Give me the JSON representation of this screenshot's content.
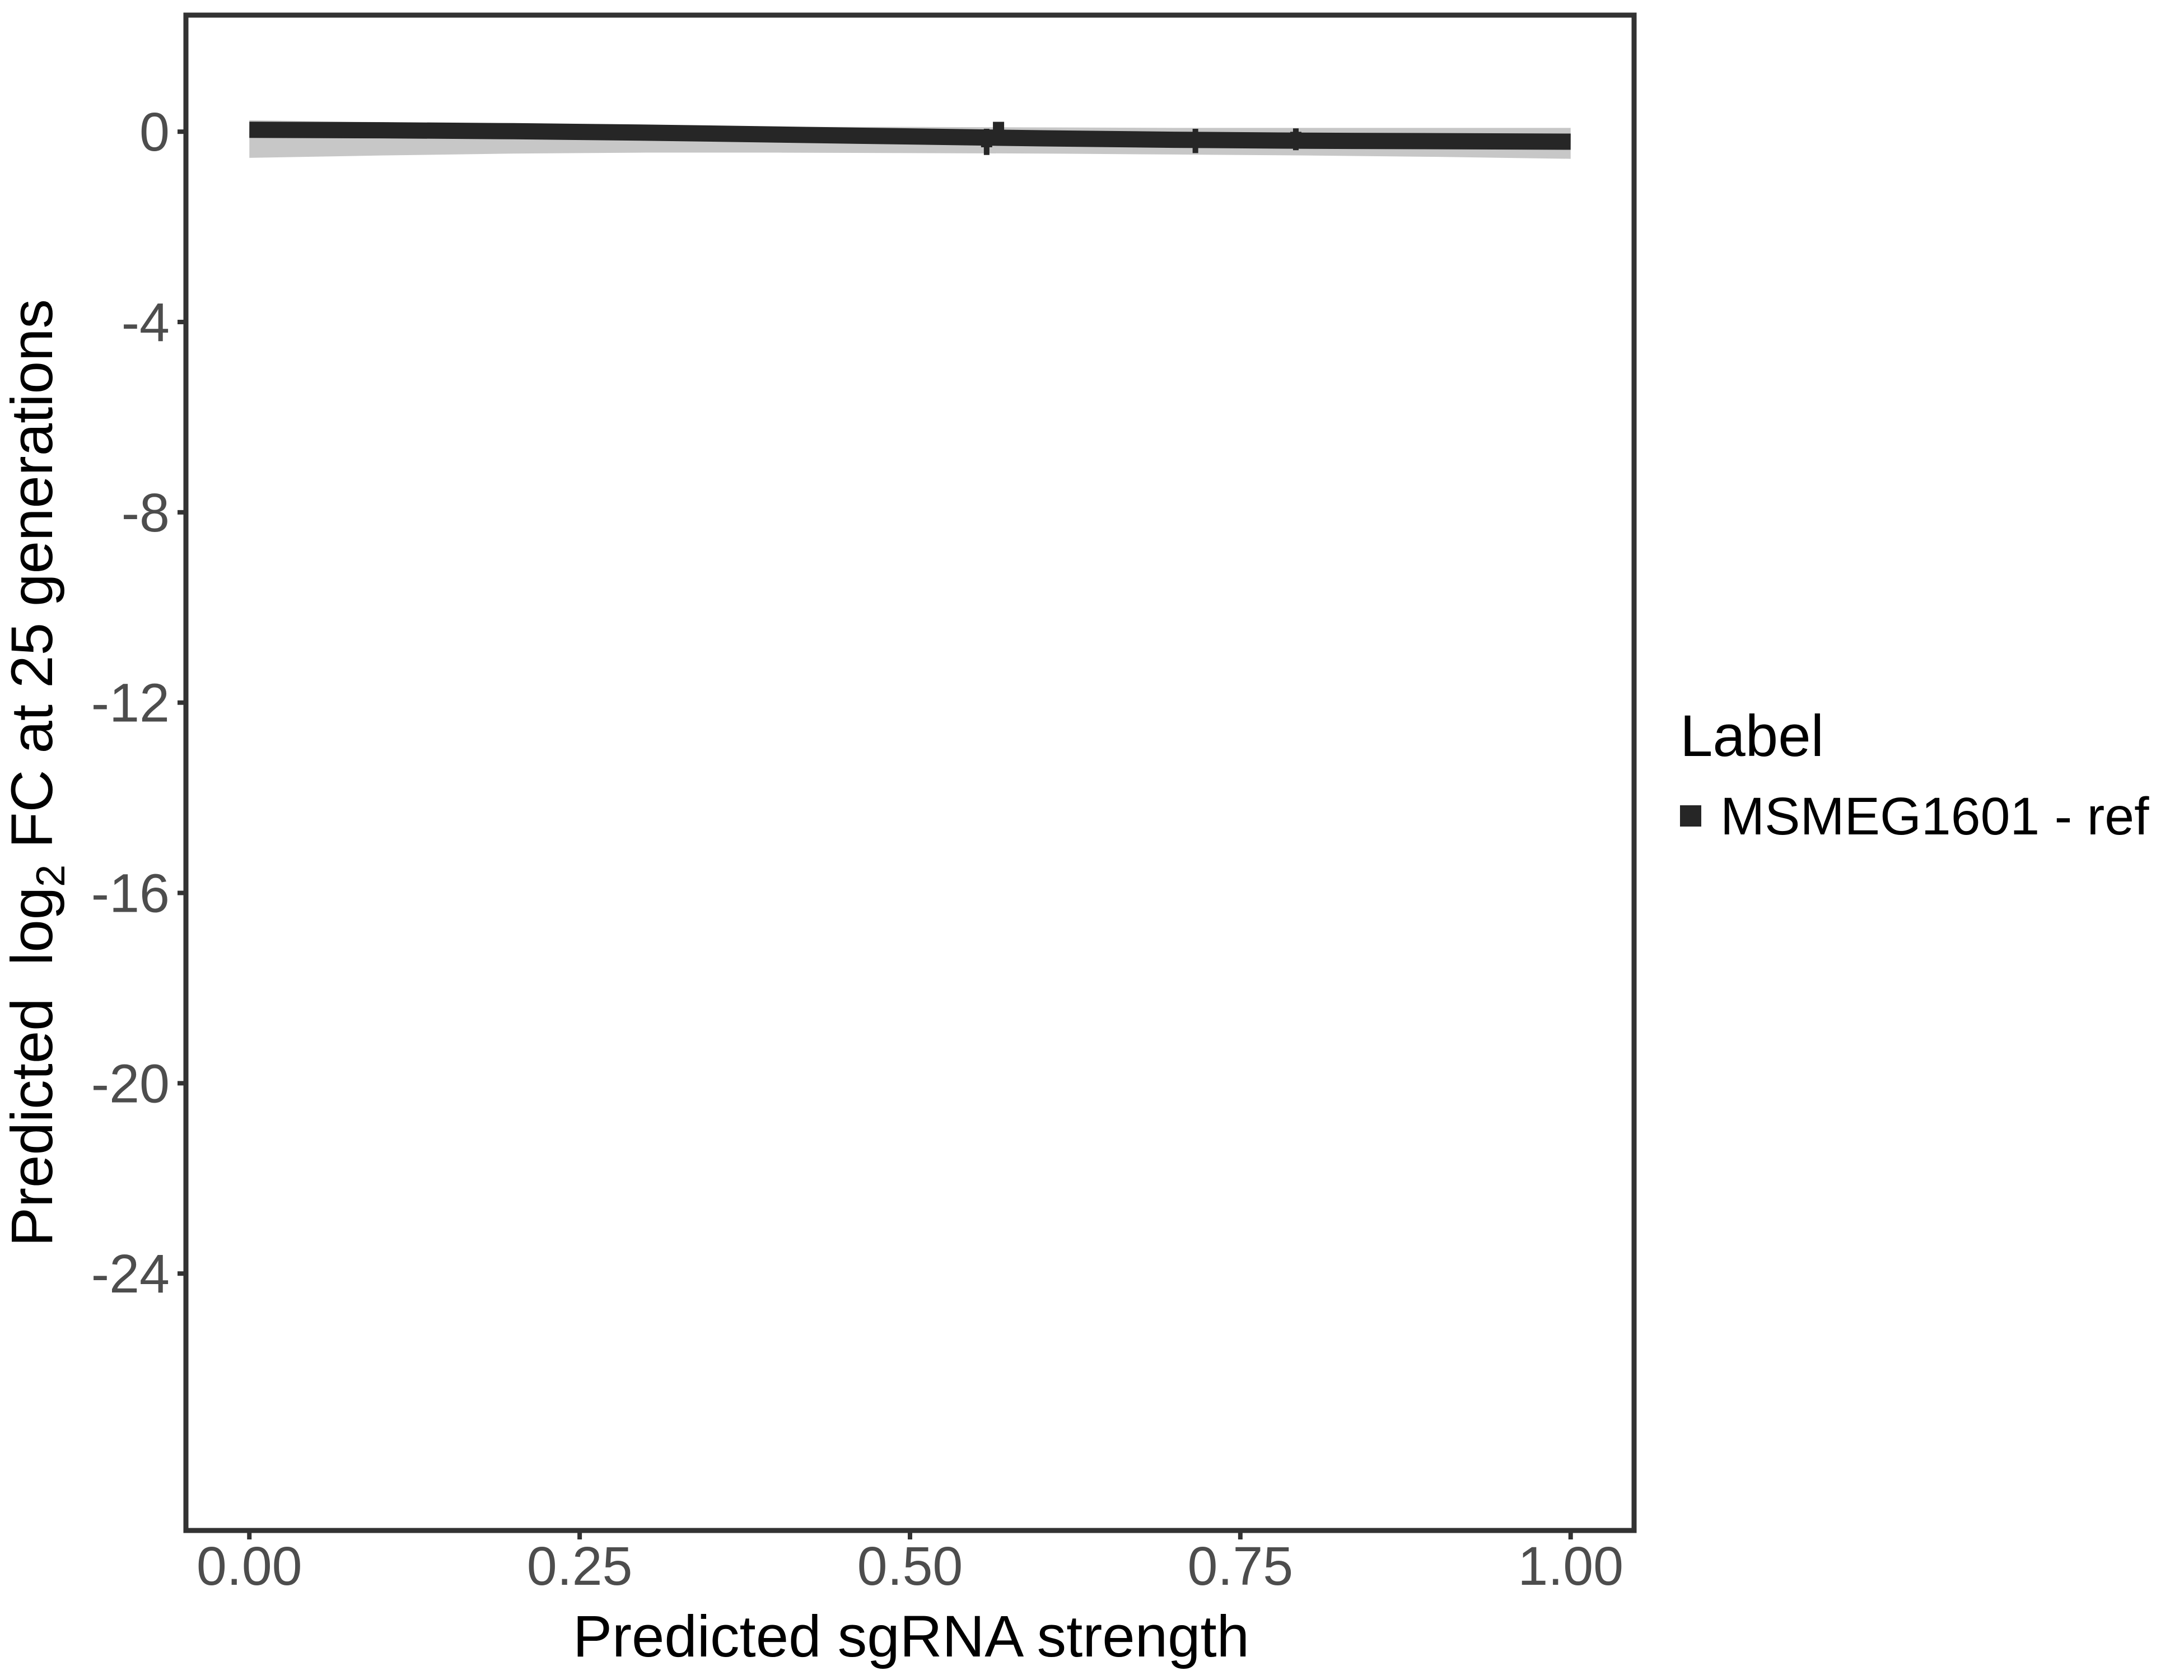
{
  "figure": {
    "background": "#ffffff",
    "x_axis": {
      "title": "Predicted sgRNA strength"
    },
    "y_axis": {
      "title_pre": "Predicted  log",
      "title_sub": "2",
      "title_post": " FC at 25 generations"
    },
    "legend": {
      "title": "Label",
      "entry_label": "MSMEG1601 - ref",
      "key_color": "#262626"
    },
    "colors": {
      "line": "#262626",
      "ribbon": "rgba(0,0,0,0.22)",
      "axis_text": "#4d4d4d",
      "axis_line": "#333333",
      "title_text": "#000000"
    }
  },
  "chart_data": {
    "type": "line",
    "title": "",
    "xlabel": "Predicted sgRNA strength",
    "ylabel": "Predicted log2 FC at 25 generations",
    "legend_title": "Label",
    "legend_position": "right",
    "grid": false,
    "xlim": [
      -0.048,
      1.048
    ],
    "ylim": [
      -29.4,
      2.45
    ],
    "x_ticks": [
      0,
      0.25,
      0.5,
      0.75,
      1.0
    ],
    "x_tick_labels": [
      "0.00",
      "0.25",
      "0.50",
      "0.75",
      "1.00"
    ],
    "y_ticks": [
      0,
      -4,
      -8,
      -12,
      -16,
      -20,
      -24
    ],
    "y_tick_labels": [
      "0",
      "-4",
      "-8",
      "-12",
      "-16",
      "-20",
      "-24"
    ],
    "series": [
      {
        "name": "MSMEG1601 - ref",
        "x": [
          0.0,
          0.1,
          0.2,
          0.3,
          0.4,
          0.5,
          0.6,
          0.7,
          0.8,
          0.9,
          1.0
        ],
        "y": [
          0.04,
          0.03,
          0.01,
          -0.02,
          -0.06,
          -0.1,
          -0.14,
          -0.17,
          -0.19,
          -0.2,
          -0.21
        ],
        "ribbon_hi": [
          0.24,
          0.2,
          0.16,
          0.12,
          0.1,
          0.1,
          0.09,
          0.08,
          0.08,
          0.08,
          0.08
        ],
        "ribbon_lo": [
          -0.55,
          -0.5,
          -0.46,
          -0.44,
          -0.44,
          -0.45,
          -0.46,
          -0.48,
          -0.5,
          -0.53,
          -0.57
        ]
      }
    ],
    "points": [
      {
        "x": 0.558,
        "y": -0.21,
        "ymin": -0.49,
        "ymax": 0.06
      },
      {
        "x": 0.567,
        "y": 0.09,
        "ymin": -0.02,
        "ymax": 0.2
      },
      {
        "x": 0.716,
        "y": -0.14,
        "ymin": -0.45,
        "ymax": 0.06
      },
      {
        "x": 0.792,
        "y": -0.12,
        "ymin": -0.39,
        "ymax": 0.07
      }
    ]
  }
}
